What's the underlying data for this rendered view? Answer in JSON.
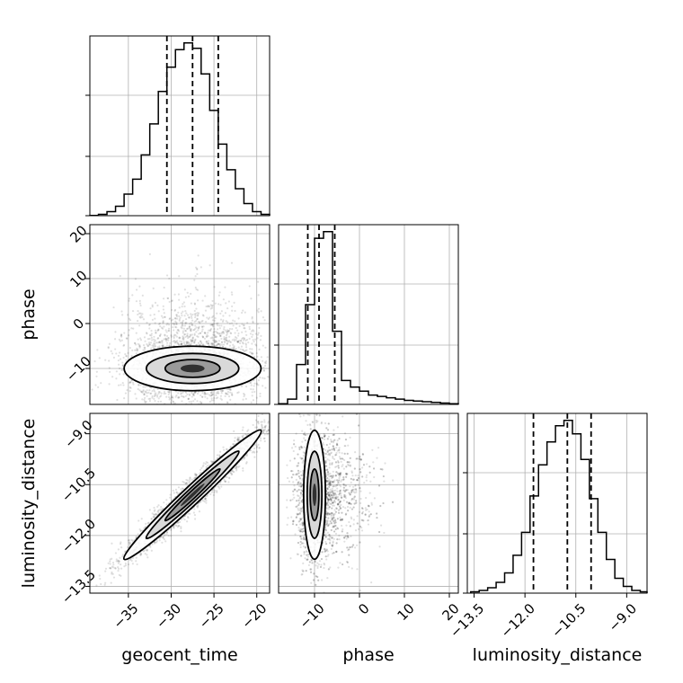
{
  "chart_data": {
    "type": "corner",
    "parameters": [
      "geocent_time",
      "phase",
      "luminosity_distance"
    ],
    "axis_labels": {
      "geocent_time": "geocent_time",
      "phase": "phase",
      "luminosity_distance": "luminosity_distance"
    },
    "ranges": {
      "geocent_time": [
        -39.5,
        -18.5
      ],
      "phase": [
        -18,
        22
      ],
      "luminosity_distance": [
        -13.7,
        -8.4
      ]
    },
    "ticks": {
      "geocent_time": {
        "values": [
          -35,
          -30,
          -25,
          -20
        ],
        "labels": [
          "−35",
          "−30",
          "−25",
          "−20"
        ]
      },
      "phase": {
        "values": [
          -10,
          0,
          10,
          20
        ],
        "labels": [
          "−10",
          "0",
          "10",
          "20"
        ]
      },
      "luminosity_distance": {
        "values": [
          -13.5,
          -12.0,
          -10.5,
          -9.0
        ],
        "labels": [
          "−13.5",
          "−12.0",
          "−10.5",
          "−9.0"
        ]
      }
    },
    "grid": true,
    "histograms": {
      "geocent_time": {
        "edges": [
          -39.5,
          -38.5,
          -37.5,
          -36.5,
          -35.5,
          -34.5,
          -33.5,
          -32.5,
          -31.5,
          -30.5,
          -29.5,
          -28.5,
          -27.5,
          -26.5,
          -25.5,
          -24.5,
          -23.5,
          -22.5,
          -21.5,
          -20.5,
          -19.5,
          -18.5
        ],
        "counts": [
          0.2,
          1,
          3,
          7,
          16,
          27,
          45,
          68,
          92,
          110,
          123,
          128,
          124,
          105,
          78,
          53,
          34,
          20,
          9,
          3,
          1
        ],
        "quantiles": [
          -30.5,
          -27.5,
          -24.5
        ]
      },
      "phase": {
        "edges": [
          -18,
          -16,
          -14,
          -12,
          -10,
          -8,
          -6,
          -4,
          -2,
          0,
          2,
          4,
          6,
          8,
          10,
          12,
          14,
          16,
          18,
          20,
          22
        ],
        "counts": [
          0.5,
          4,
          30,
          75,
          125,
          130,
          55,
          18,
          13,
          10,
          7,
          6,
          5,
          4,
          3,
          2.5,
          2,
          1.5,
          1,
          0.5
        ],
        "quantiles": [
          -11.5,
          -9.0,
          -5.5
        ]
      },
      "luminosity_distance": {
        "edges": [
          -13.6,
          -13.35,
          -13.1,
          -12.85,
          -12.6,
          -12.35,
          -12.1,
          -11.85,
          -11.6,
          -11.35,
          -11.1,
          -10.85,
          -10.6,
          -10.35,
          -10.1,
          -9.85,
          -9.6,
          -9.35,
          -9.1,
          -8.85,
          -8.6,
          -8.4
        ],
        "counts": [
          1,
          2,
          4,
          8,
          15,
          28,
          45,
          72,
          95,
          112,
          124,
          128,
          118,
          99,
          70,
          45,
          25,
          11,
          5,
          2,
          1
        ],
        "quantiles": [
          -11.75,
          -10.75,
          -10.05
        ]
      }
    },
    "pairs": [
      {
        "x": "geocent_time",
        "y": "phase",
        "center": [
          -27.5,
          -10.0
        ],
        "sd": [
          4.0,
          4.5
        ],
        "corr": 0.0,
        "skew_y": 7.0
      },
      {
        "x": "geocent_time",
        "y": "luminosity_distance",
        "center": [
          -27.5,
          -10.8
        ],
        "sd": [
          4.0,
          0.95
        ],
        "corr": 0.97,
        "skew_y": 0
      },
      {
        "x": "phase",
        "y": "luminosity_distance",
        "center": [
          -10.0,
          -10.8
        ],
        "sd": [
          2.2,
          0.95
        ],
        "corr": 0.0,
        "skew_x": 6.0
      }
    ],
    "scatter_points_per_panel": 2600
  }
}
